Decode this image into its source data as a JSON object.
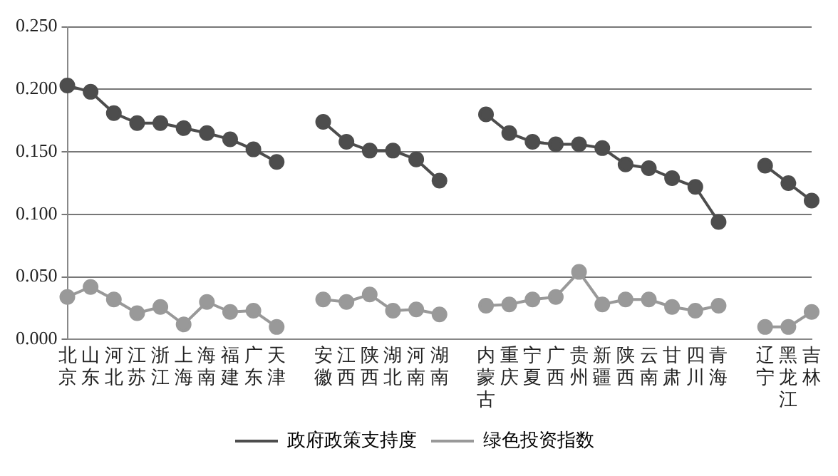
{
  "chart_data": {
    "type": "line",
    "categories": [
      "北京",
      "山东",
      "河北",
      "江苏",
      "浙江",
      "上海",
      "海南",
      "福建",
      "广东",
      "天津",
      null,
      "安徽",
      "江西",
      "陕西",
      "湖北",
      "河南",
      "湖南",
      null,
      "内蒙古",
      "重庆",
      "宁夏",
      "广西",
      "贵州",
      "新疆",
      "陕西",
      "云南",
      "甘肃",
      "四川",
      "青海",
      null,
      "辽宁",
      "黑龙江",
      "吉林"
    ],
    "series": [
      {
        "name": "政府政策支持度",
        "color": "#4d4d4d",
        "values": [
          0.203,
          0.198,
          0.181,
          0.173,
          0.173,
          0.169,
          0.165,
          0.16,
          0.152,
          0.142,
          null,
          0.174,
          0.158,
          0.151,
          0.151,
          0.144,
          0.127,
          null,
          0.18,
          0.165,
          0.158,
          0.156,
          0.156,
          0.153,
          0.14,
          0.137,
          0.129,
          0.122,
          0.094,
          null,
          0.139,
          0.125,
          0.111
        ]
      },
      {
        "name": "绿色投资指数",
        "color": "#999999",
        "values": [
          0.034,
          0.042,
          0.032,
          0.021,
          0.026,
          0.012,
          0.03,
          0.022,
          0.023,
          0.01,
          null,
          0.032,
          0.03,
          0.036,
          0.023,
          0.024,
          0.02,
          null,
          0.027,
          0.028,
          0.032,
          0.034,
          0.054,
          0.028,
          0.032,
          0.032,
          0.026,
          0.023,
          0.027,
          null,
          0.01,
          0.01,
          0.022
        ]
      }
    ],
    "ylim": [
      0,
      0.25
    ],
    "yticks": [
      {
        "value": 0,
        "label": "0.000"
      },
      {
        "value": 0.05,
        "label": "0.050"
      },
      {
        "value": 0.1,
        "label": "0.100"
      },
      {
        "value": 0.15,
        "label": "0.150"
      },
      {
        "value": 0.2,
        "label": "0.200"
      },
      {
        "value": 0.25,
        "label": "0.250"
      }
    ],
    "grid": "y",
    "legend": "bottom",
    "marker": "circle"
  }
}
